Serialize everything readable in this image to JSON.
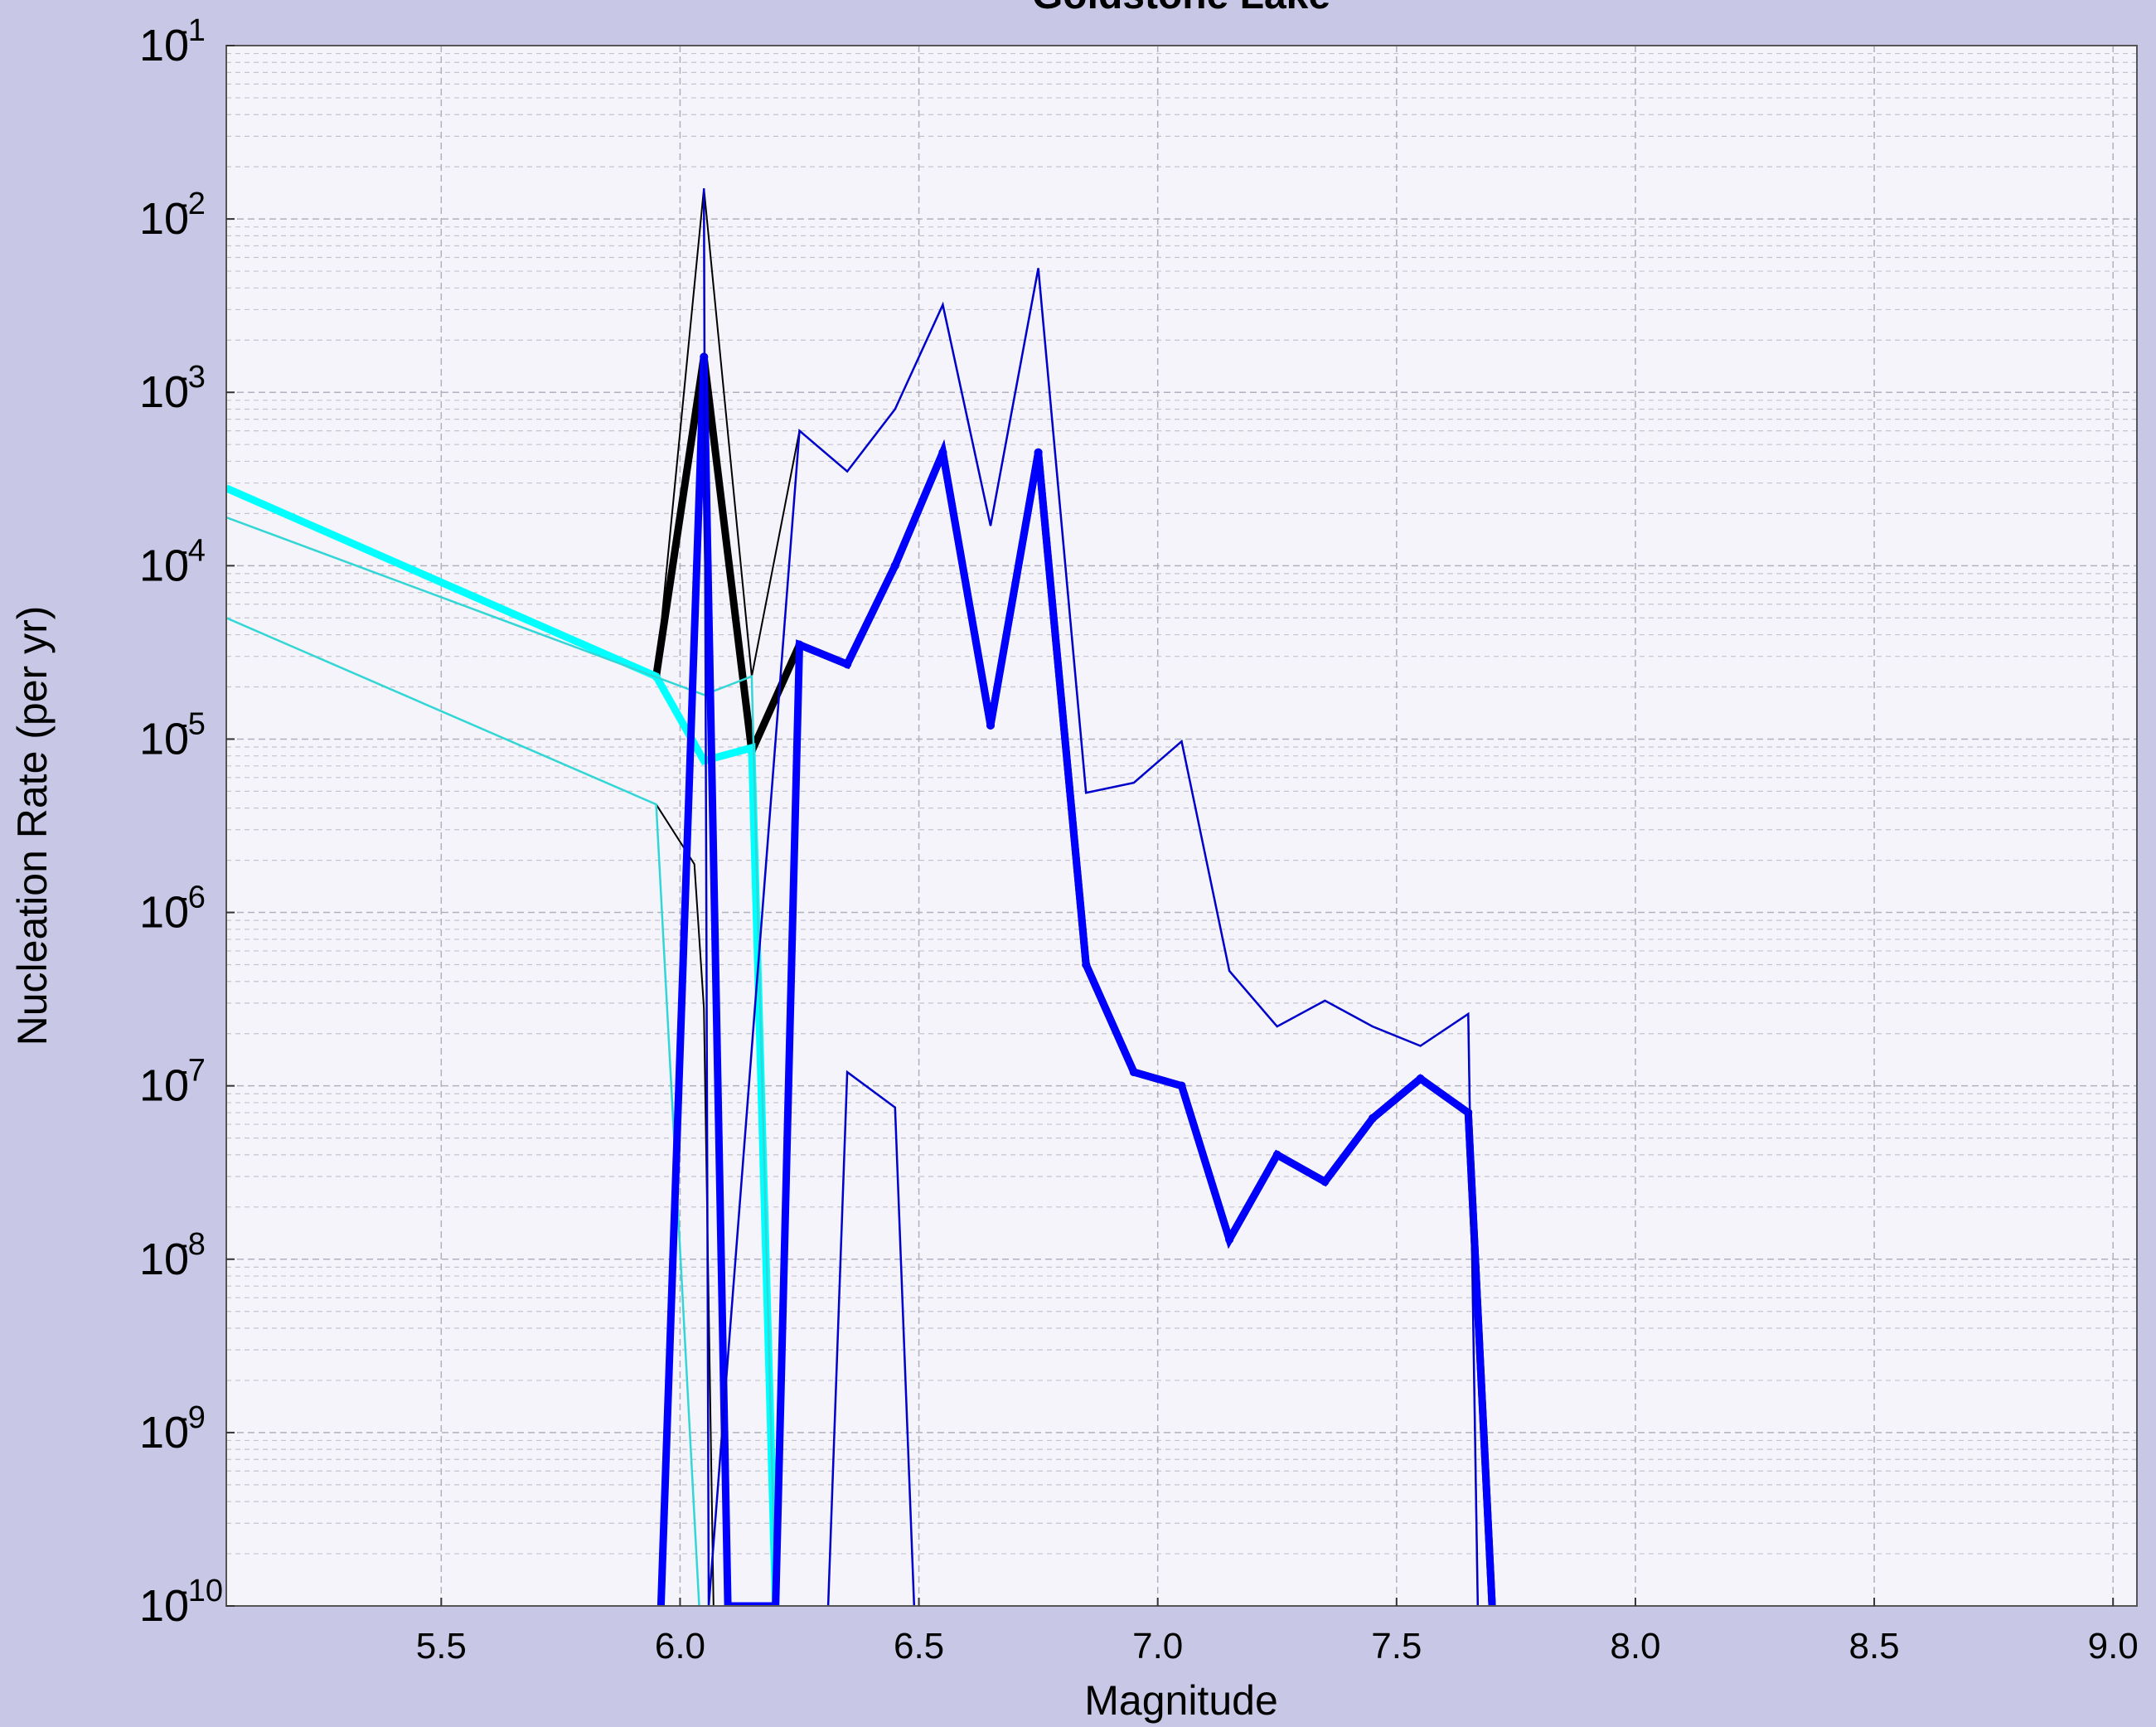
{
  "chart_data": {
    "type": "line",
    "title": "Goldstone Lake",
    "xlabel": "Magnitude",
    "ylabel": "Nucleation Rate (per yr)",
    "xlim": [
      5.05,
      9.05
    ],
    "ylim": [
      1e-10,
      0.1
    ],
    "yscale": "log",
    "grid": true,
    "x_ticks": [
      "5.5",
      "6.0",
      "6.5",
      "7.0",
      "7.5",
      "8.0",
      "8.5",
      "9.0"
    ],
    "y_ticks": [
      {
        "base": "10",
        "exp": "-1",
        "value": 0.1
      },
      {
        "base": "10",
        "exp": "-2",
        "value": 0.01
      },
      {
        "base": "10",
        "exp": "-3",
        "value": 0.001
      },
      {
        "base": "10",
        "exp": "-4",
        "value": 0.0001
      },
      {
        "base": "10",
        "exp": "-5",
        "value": 1e-05
      },
      {
        "base": "10",
        "exp": "-6",
        "value": 1e-06
      },
      {
        "base": "10",
        "exp": "-7",
        "value": 1e-07
      },
      {
        "base": "10",
        "exp": "-8",
        "value": 1e-08
      },
      {
        "base": "10",
        "exp": "-9",
        "value": 1e-09
      },
      {
        "base": "10",
        "exp": "-10",
        "value": 1e-10
      }
    ],
    "colors": {
      "background": "#c8c8e6",
      "plot": "#f4f4fa",
      "black": "#000000",
      "cyan": "#00ffff",
      "cyan_thin": "#33d6d6",
      "blue": "#0000ff",
      "blue_thin": "#0000cc"
    },
    "series": [
      {
        "id": "black-mean",
        "color": "#000000",
        "width": 9,
        "markers": true,
        "points": [
          [
            5.95,
            2.3e-05
          ],
          [
            6.05,
            0.0016
          ],
          [
            6.15,
            8.5e-06
          ],
          [
            6.25,
            3.5e-05
          ],
          [
            6.35,
            2.7e-05
          ],
          [
            6.45,
            0.0001
          ],
          [
            6.55,
            0.00045
          ],
          [
            6.65,
            1.2e-05
          ],
          [
            6.75,
            0.00045
          ],
          [
            6.85,
            5e-07
          ],
          [
            6.95,
            1.2e-07
          ],
          [
            7.05,
            1e-07
          ],
          [
            7.15,
            1.3e-08
          ],
          [
            7.25,
            4e-08
          ],
          [
            7.35,
            2.8e-08
          ],
          [
            7.45,
            6.5e-08
          ],
          [
            7.55,
            1.1e-07
          ],
          [
            7.65,
            7e-08
          ],
          [
            7.7,
            1e-10
          ]
        ]
      },
      {
        "id": "black-upper",
        "color": "#000000",
        "width": 2,
        "markers": false,
        "points": [
          [
            5.95,
            2.3e-05
          ],
          [
            6.05,
            0.015
          ],
          [
            6.15,
            2.3e-05
          ],
          [
            6.25,
            0.0006
          ],
          [
            6.35,
            0.00035
          ],
          [
            6.45,
            0.0008
          ],
          [
            6.55,
            0.0032
          ],
          [
            6.65,
            0.00017
          ],
          [
            6.75,
            0.0052
          ],
          [
            6.85,
            4.9e-06
          ],
          [
            6.95,
            5.6e-06
          ],
          [
            7.05,
            9.7e-06
          ],
          [
            7.15,
            4.6e-07
          ],
          [
            7.25,
            2.2e-07
          ],
          [
            7.35,
            3.1e-07
          ],
          [
            7.45,
            2.2e-07
          ],
          [
            7.55,
            1.7e-07
          ],
          [
            7.65,
            2.6e-07
          ],
          [
            7.67,
            1e-10
          ]
        ]
      },
      {
        "id": "black-lower",
        "color": "#000000",
        "width": 2,
        "markers": false,
        "points": [
          [
            5.95,
            4.2e-06
          ],
          [
            6.03,
            1.9e-06
          ],
          [
            6.05,
            2.8e-07
          ],
          [
            6.07,
            1e-10
          ]
        ]
      },
      {
        "id": "cyan-mean",
        "color": "#00ffff",
        "width": 9,
        "markers": false,
        "points": [
          [
            5.05,
            0.00028
          ],
          [
            5.95,
            2.3e-05
          ],
          [
            6.05,
            7.5e-06
          ],
          [
            6.15,
            8.9e-06
          ],
          [
            6.2,
            1e-10
          ]
        ]
      },
      {
        "id": "cyan-upper",
        "color": "#33d6d6",
        "width": 2.5,
        "markers": false,
        "points": [
          [
            5.05,
            0.00019
          ],
          [
            6.05,
            1.8e-05
          ],
          [
            6.15,
            2.3e-05
          ],
          [
            6.2,
            1e-10
          ]
        ]
      },
      {
        "id": "cyan-lower",
        "color": "#33d6d6",
        "width": 2.5,
        "markers": false,
        "points": [
          [
            5.05,
            5e-05
          ],
          [
            5.95,
            4.2e-06
          ],
          [
            6.04,
            1e-10
          ]
        ]
      },
      {
        "id": "blue-mean",
        "color": "#0000ff",
        "width": 9,
        "markers": true,
        "points": [
          [
            5.96,
            1e-10
          ],
          [
            6.05,
            0.0016
          ],
          [
            6.1,
            1e-10
          ],
          [
            6.2,
            1e-10
          ],
          [
            6.25,
            3.5e-05
          ],
          [
            6.35,
            2.7e-05
          ],
          [
            6.45,
            0.0001
          ],
          [
            6.55,
            0.00045
          ],
          [
            6.65,
            1.2e-05
          ],
          [
            6.75,
            0.00045
          ],
          [
            6.85,
            5e-07
          ],
          [
            6.95,
            1.2e-07
          ],
          [
            7.05,
            1e-07
          ],
          [
            7.15,
            1.3e-08
          ],
          [
            7.25,
            4e-08
          ],
          [
            7.35,
            2.8e-08
          ],
          [
            7.45,
            6.5e-08
          ],
          [
            7.55,
            1.1e-07
          ],
          [
            7.65,
            7e-08
          ],
          [
            7.7,
            1e-10
          ]
        ]
      },
      {
        "id": "blue-upper",
        "color": "#0000cc",
        "width": 2.5,
        "markers": false,
        "points": [
          [
            6.05,
            0.015
          ],
          [
            6.06,
            1e-10
          ],
          [
            6.25,
            0.0006
          ],
          [
            6.35,
            0.00035
          ],
          [
            6.45,
            0.0008
          ],
          [
            6.55,
            0.0032
          ],
          [
            6.65,
            0.00017
          ],
          [
            6.75,
            0.0052
          ],
          [
            6.85,
            4.9e-06
          ],
          [
            6.95,
            5.6e-06
          ],
          [
            7.05,
            9.7e-06
          ],
          [
            7.15,
            4.6e-07
          ],
          [
            7.25,
            2.2e-07
          ],
          [
            7.35,
            3.1e-07
          ],
          [
            7.45,
            2.2e-07
          ],
          [
            7.55,
            1.7e-07
          ],
          [
            7.65,
            2.6e-07
          ],
          [
            7.67,
            1e-10
          ]
        ]
      },
      {
        "id": "blue-lower",
        "color": "#0000cc",
        "width": 2.5,
        "markers": false,
        "points": [
          [
            6.31,
            1e-10
          ],
          [
            6.35,
            1.2e-07
          ],
          [
            6.45,
            7.5e-08
          ],
          [
            6.49,
            1e-10
          ]
        ]
      }
    ]
  }
}
